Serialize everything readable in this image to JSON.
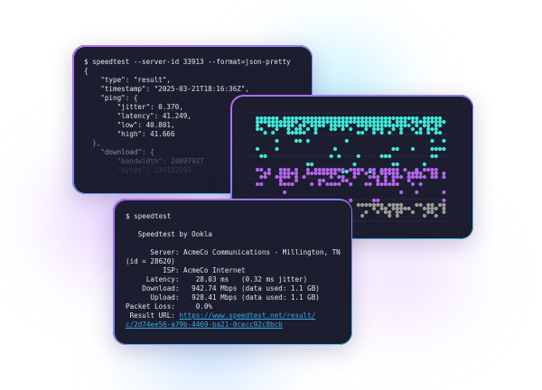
{
  "json_terminal": {
    "lines": [
      "$ speedtest --server-id 33913 --format=json-pretty",
      "{",
      "    \"type\": \"result\",",
      "    \"timestamp\": \"2025-03-21T18:16:36Z\",",
      "    \"ping\": {",
      "        \"jitter\": 0.370,",
      "        \"latency\": 41.249,",
      "        \"low\": 40.801,",
      "        \"high\": 41.666",
      "  },",
      "    \"download\": {",
      "        \"bandwidth\": 24097927",
      "        \"bytes\": 239152592"
    ]
  },
  "dot_chart": {
    "colors": {
      "download": "#3ee6d6",
      "upload": "#b264ea",
      "latency": "#9c9a98",
      "grid": "#2a2d48"
    }
  },
  "speedtest_terminal": {
    "command": "$ speedtest",
    "lines": [
      "   Speedtest by Ookla",
      "      Server: AcmeCo Communications - Millington, TN",
      "(id = 28620)",
      "         ISP: AcmeCo Internet",
      "     Latency:    28.03 ms   (0.32 ms jitter)",
      "    Download:   942.74 Mbps (data used: 1.1 GB)",
      "      Upload:   928.41 Mbps (data used: 1.1 GB)",
      "Packet Loss:     0.0%"
    ],
    "result_label": " Result URL: ",
    "result_url_1": "https://www.speedtest.net/result/",
    "result_url_2": "c/2d74ee56-a79b-4469-ba21-0cecc92c8bcb"
  }
}
